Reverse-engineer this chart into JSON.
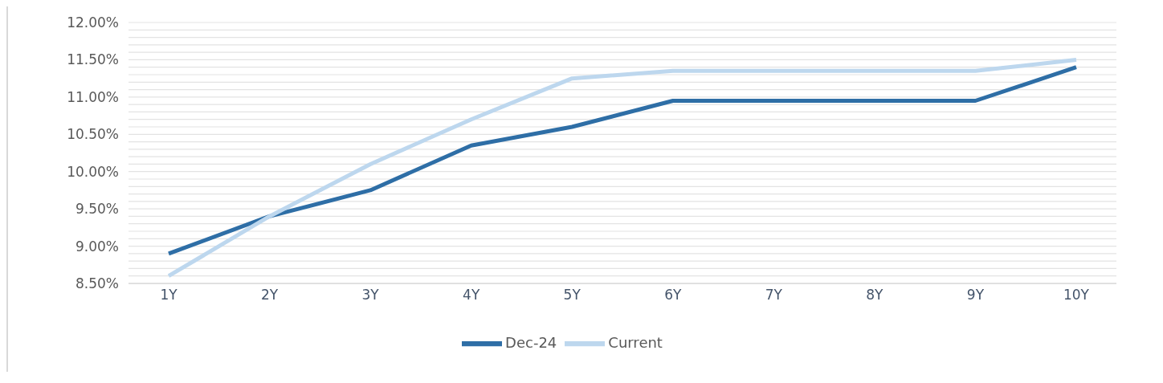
{
  "chart_data": {
    "type": "line",
    "categories": [
      "1Y",
      "2Y",
      "3Y",
      "4Y",
      "5Y",
      "6Y",
      "7Y",
      "8Y",
      "9Y",
      "10Y"
    ],
    "series": [
      {
        "name": "Dec-24",
        "color": "#2e6ea6",
        "values": [
          8.9,
          9.4,
          9.75,
          10.35,
          10.6,
          10.95,
          10.95,
          10.95,
          10.95,
          11.4
        ]
      },
      {
        "name": "Current",
        "color": "#bdd7ee",
        "values": [
          8.6,
          9.4,
          10.1,
          10.7,
          11.25,
          11.35,
          11.35,
          11.35,
          11.35,
          11.5
        ]
      }
    ],
    "ylim": [
      8.5,
      12
    ],
    "yticks": [
      {
        "value": 8.5,
        "label": "8.50%"
      },
      {
        "value": 8.6,
        "label": null
      },
      {
        "value": 8.7,
        "label": null
      },
      {
        "value": 8.8,
        "label": null
      },
      {
        "value": 8.9,
        "label": null
      },
      {
        "value": 9,
        "label": "9.00%"
      },
      {
        "value": 9.1,
        "label": null
      },
      {
        "value": 9.2,
        "label": null
      },
      {
        "value": 9.3,
        "label": null
      },
      {
        "value": 9.4,
        "label": null
      },
      {
        "value": 9.5,
        "label": "9.50%"
      },
      {
        "value": 9.6,
        "label": null
      },
      {
        "value": 9.7,
        "label": null
      },
      {
        "value": 9.8,
        "label": null
      },
      {
        "value": 9.9,
        "label": null
      },
      {
        "value": 10,
        "label": "10.00%"
      },
      {
        "value": 10.1,
        "label": null
      },
      {
        "value": 10.2,
        "label": null
      },
      {
        "value": 10.3,
        "label": null
      },
      {
        "value": 10.4,
        "label": null
      },
      {
        "value": 10.5,
        "label": "10.50%"
      },
      {
        "value": 10.6,
        "label": null
      },
      {
        "value": 10.7,
        "label": null
      },
      {
        "value": 10.8,
        "label": null
      },
      {
        "value": 10.9,
        "label": null
      },
      {
        "value": 11,
        "label": "11.00%"
      },
      {
        "value": 11.1,
        "label": null
      },
      {
        "value": 11.2,
        "label": null
      },
      {
        "value": 11.3,
        "label": null
      },
      {
        "value": 11.4,
        "label": null
      },
      {
        "value": 11.5,
        "label": "11.50%"
      },
      {
        "value": 11.6,
        "label": null
      },
      {
        "value": 11.7,
        "label": null
      },
      {
        "value": 11.8,
        "label": null
      },
      {
        "value": 11.9,
        "label": null
      },
      {
        "value": 12,
        "label": "12.00%"
      }
    ],
    "grid": "y",
    "legend": "bottom",
    "marker": "none",
    "line_style": "solid"
  }
}
